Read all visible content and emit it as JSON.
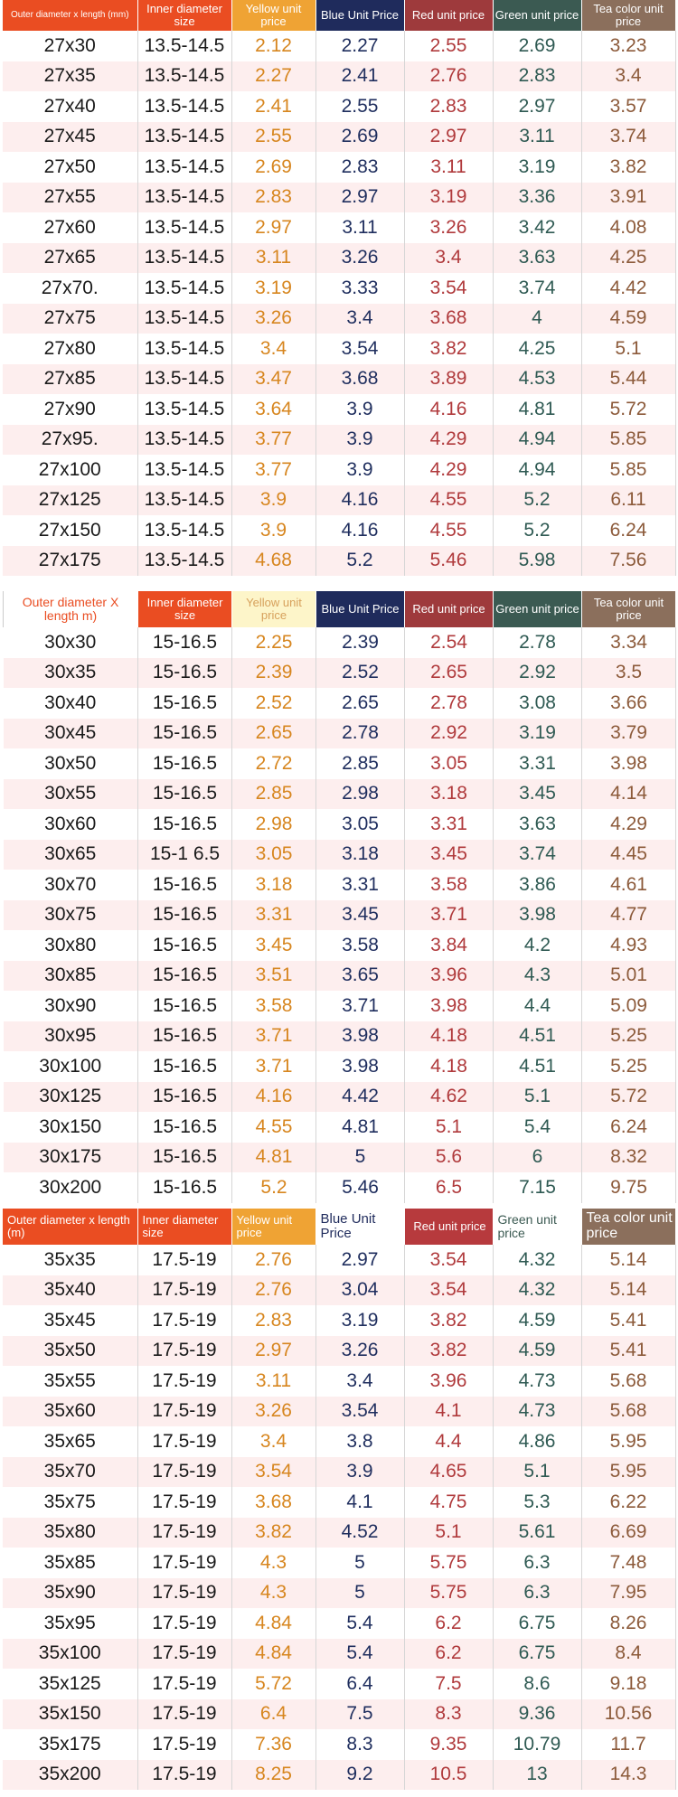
{
  "colors": {
    "orange": "#ea4d22",
    "yellow": "#efa334",
    "blue": "#1f2b5c",
    "red": "#9e3a3c",
    "green": "#3b5a52",
    "tea": "#8b6f5c",
    "row_alt": "#fdeeee"
  },
  "blocks": [
    {
      "headers": [
        "Outer diameter x length (mm)",
        "Inner diameter size",
        "Yellow unit price",
        "Blue Unit Price",
        "Red unit price",
        "Green unit price",
        "Tea color unit price"
      ],
      "rows": [
        [
          "27x30",
          "13.5-14.5",
          "2.12",
          "2.27",
          "2.55",
          "2.69",
          "3.23"
        ],
        [
          "27x35",
          "13.5-14.5",
          "2.27",
          "2.41",
          "2.76",
          "2.83",
          "3.4"
        ],
        [
          "27x40",
          "13.5-14.5",
          "2.41",
          "2.55",
          "2.83",
          "2.97",
          "3.57"
        ],
        [
          "27x45",
          "13.5-14.5",
          "2.55",
          "2.69",
          "2.97",
          "3.11",
          "3.74"
        ],
        [
          "27x50",
          "13.5-14.5",
          "2.69",
          "2.83",
          "3.11",
          "3.19",
          "3.82"
        ],
        [
          "27x55",
          "13.5-14.5",
          "2.83",
          "2.97",
          "3.19",
          "3.36",
          "3.91"
        ],
        [
          "27x60",
          "13.5-14.5",
          "2.97",
          "3.11",
          "3.26",
          "3.42",
          "4.08"
        ],
        [
          "27x65",
          "13.5-14.5",
          "3.11",
          "3.26",
          "3.4",
          "3.63",
          "4.25"
        ],
        [
          "27x70.",
          "13.5-14.5",
          "3.19",
          "3.33",
          "3.54",
          "3.74",
          "4.42"
        ],
        [
          "27x75",
          "13.5-14.5",
          "3.26",
          "3.4",
          "3.68",
          "4",
          "4.59"
        ],
        [
          "27x80",
          "13.5-14.5",
          "3.4",
          "3.54",
          "3.82",
          "4.25",
          "5.1"
        ],
        [
          "27x85",
          "13.5-14.5",
          "3.47",
          "3.68",
          "3.89",
          "4.53",
          "5.44"
        ],
        [
          "27x90",
          "13.5-14.5",
          "3.64",
          "3.9",
          "4.16",
          "4.81",
          "5.72"
        ],
        [
          "27x95.",
          "13.5-14.5",
          "3.77",
          "3.9",
          "4.29",
          "4.94",
          "5.85"
        ],
        [
          "27x100",
          "13.5-14.5",
          "3.77",
          "3.9",
          "4.29",
          "4.94",
          "5.85"
        ],
        [
          "27x125",
          "13.5-14.5",
          "3.9",
          "4.16",
          "4.55",
          "5.2",
          "6.11"
        ],
        [
          "27x150",
          "13.5-14.5",
          "3.9",
          "4.16",
          "4.55",
          "5.2",
          "6.24"
        ],
        [
          "27x175",
          "13.5-14.5",
          "4.68",
          "5.2",
          "5.46",
          "5.98",
          "7.56"
        ]
      ]
    },
    {
      "headers": [
        "Outer diameter X length m)",
        "Inner diameter size",
        "Yellow unit price",
        "Blue Unit Price",
        "Red unit price",
        "Green unit price",
        "Tea color unit price"
      ],
      "rows": [
        [
          "30x30",
          "15-16.5",
          "2.25",
          "2.39",
          "2.54",
          "2.78",
          "3.34"
        ],
        [
          "30x35",
          "15-16.5",
          "2.39",
          "2.52",
          "2.65",
          "2.92",
          "3.5"
        ],
        [
          "30x40",
          "15-16.5",
          "2.52",
          "2.65",
          "2.78",
          "3.08",
          "3.66"
        ],
        [
          "30x45",
          "15-16.5",
          "2.65",
          "2.78",
          "2.92",
          "3.19",
          "3.79"
        ],
        [
          "30x50",
          "15-16.5",
          "2.72",
          "2.85",
          "3.05",
          "3.31",
          "3.98"
        ],
        [
          "30x55",
          "15-16.5",
          "2.85",
          "2.98",
          "3.18",
          "3.45",
          "4.14"
        ],
        [
          "30x60",
          "15-16.5",
          "2.98",
          "3.05",
          "3.31",
          "3.63",
          "4.29"
        ],
        [
          "30x65",
          "15-1 6.5",
          "3.05",
          "3.18",
          "3.45",
          "3.74",
          "4.45"
        ],
        [
          "30x70",
          "15-16.5",
          "3.18",
          "3.31",
          "3.58",
          "3.86",
          "4.61"
        ],
        [
          "30x75",
          "15-16.5",
          "3.31",
          "3.45",
          "3.71",
          "3.98",
          "4.77"
        ],
        [
          "30x80",
          "15-16.5",
          "3.45",
          "3.58",
          "3.84",
          "4.2",
          "4.93"
        ],
        [
          "30x85",
          "15-16.5",
          "3.51",
          "3.65",
          "3.96",
          "4.3",
          "5.01"
        ],
        [
          "30x90",
          "15-16.5",
          "3.58",
          "3.71",
          "3.98",
          "4.4",
          "5.09"
        ],
        [
          "30x95",
          "15-16.5",
          "3.71",
          "3.98",
          "4.18",
          "4.51",
          "5.25"
        ],
        [
          "30x100",
          "15-16.5",
          "3.71",
          "3.98",
          "4.18",
          "4.51",
          "5.25"
        ],
        [
          "30x125",
          "15-16.5",
          "4.16",
          "4.42",
          "4.62",
          "5.1",
          "5.72"
        ],
        [
          "30x150",
          "15-16.5",
          "4.55",
          "4.81",
          "5.1",
          "5.4",
          "6.24"
        ],
        [
          "30x175",
          "15-16.5",
          "4.81",
          "5",
          "5.6",
          "6",
          "8.32"
        ],
        [
          "30x200",
          "15-16.5",
          "5.2",
          "5.46",
          "6.5",
          "7.15",
          "9.75"
        ]
      ]
    },
    {
      "headers": [
        "Outer diameter x length (m)",
        "Inner diameter size",
        "Yellow unit price",
        "Blue Unit Price",
        "Red unit price",
        "Green unit price",
        "Tea color unit price"
      ],
      "rows": [
        [
          "35x35",
          "17.5-19",
          "2.76",
          "2.97",
          "3.54",
          "4.32",
          "5.14"
        ],
        [
          "35x40",
          "17.5-19",
          "2.76",
          "3.04",
          "3.54",
          "4.32",
          "5.14"
        ],
        [
          "35x45",
          "17.5-19",
          "2.83",
          "3.19",
          "3.82",
          "4.59",
          "5.41"
        ],
        [
          "35x50",
          "17.5-19",
          "2.97",
          "3.26",
          "3.82",
          "4.59",
          "5.41"
        ],
        [
          "35x55",
          "17.5-19",
          "3.11",
          "3.4",
          "3.96",
          "4.73",
          "5.68"
        ],
        [
          "35x60",
          "17.5-19",
          "3.26",
          "3.54",
          "4.1",
          "4.73",
          "5.68"
        ],
        [
          "35x65",
          "17.5-19",
          "3.4",
          "3.8",
          "4.4",
          "4.86",
          "5.95"
        ],
        [
          "35x70",
          "17.5-19",
          "3.54",
          "3.9",
          "4.65",
          "5.1",
          "5.95"
        ],
        [
          "35x75",
          "17.5-19",
          "3.68",
          "4.1",
          "4.75",
          "5.3",
          "6.22"
        ],
        [
          "35x80",
          "17.5-19",
          "3.82",
          "4.52",
          "5.1",
          "5.61",
          "6.69"
        ],
        [
          "35x85",
          "17.5-19",
          "4.3",
          "5",
          "5.75",
          "6.3",
          "7.48"
        ],
        [
          "35x90",
          "17.5-19",
          "4.3",
          "5",
          "5.75",
          "6.3",
          "7.95"
        ],
        [
          "35x95",
          "17.5-19",
          "4.84",
          "5.4",
          "6.2",
          "6.75",
          "8.26"
        ],
        [
          "35x100",
          "17.5-19",
          "4.84",
          "5.4",
          "6.2",
          "6.75",
          "8.4"
        ],
        [
          "35x125",
          "17.5-19",
          "5.72",
          "6.4",
          "7.5",
          "8.6",
          "9.18"
        ],
        [
          "35x150",
          "17.5-19",
          "6.4",
          "7.5",
          "8.3",
          "9.36",
          "10.56"
        ],
        [
          "35x175",
          "17.5-19",
          "7.36",
          "8.3",
          "9.35",
          "10.79",
          "11.7"
        ],
        [
          "35x200",
          "17.5-19",
          "8.25",
          "9.2",
          "10.5",
          "13",
          "14.3"
        ]
      ]
    }
  ]
}
